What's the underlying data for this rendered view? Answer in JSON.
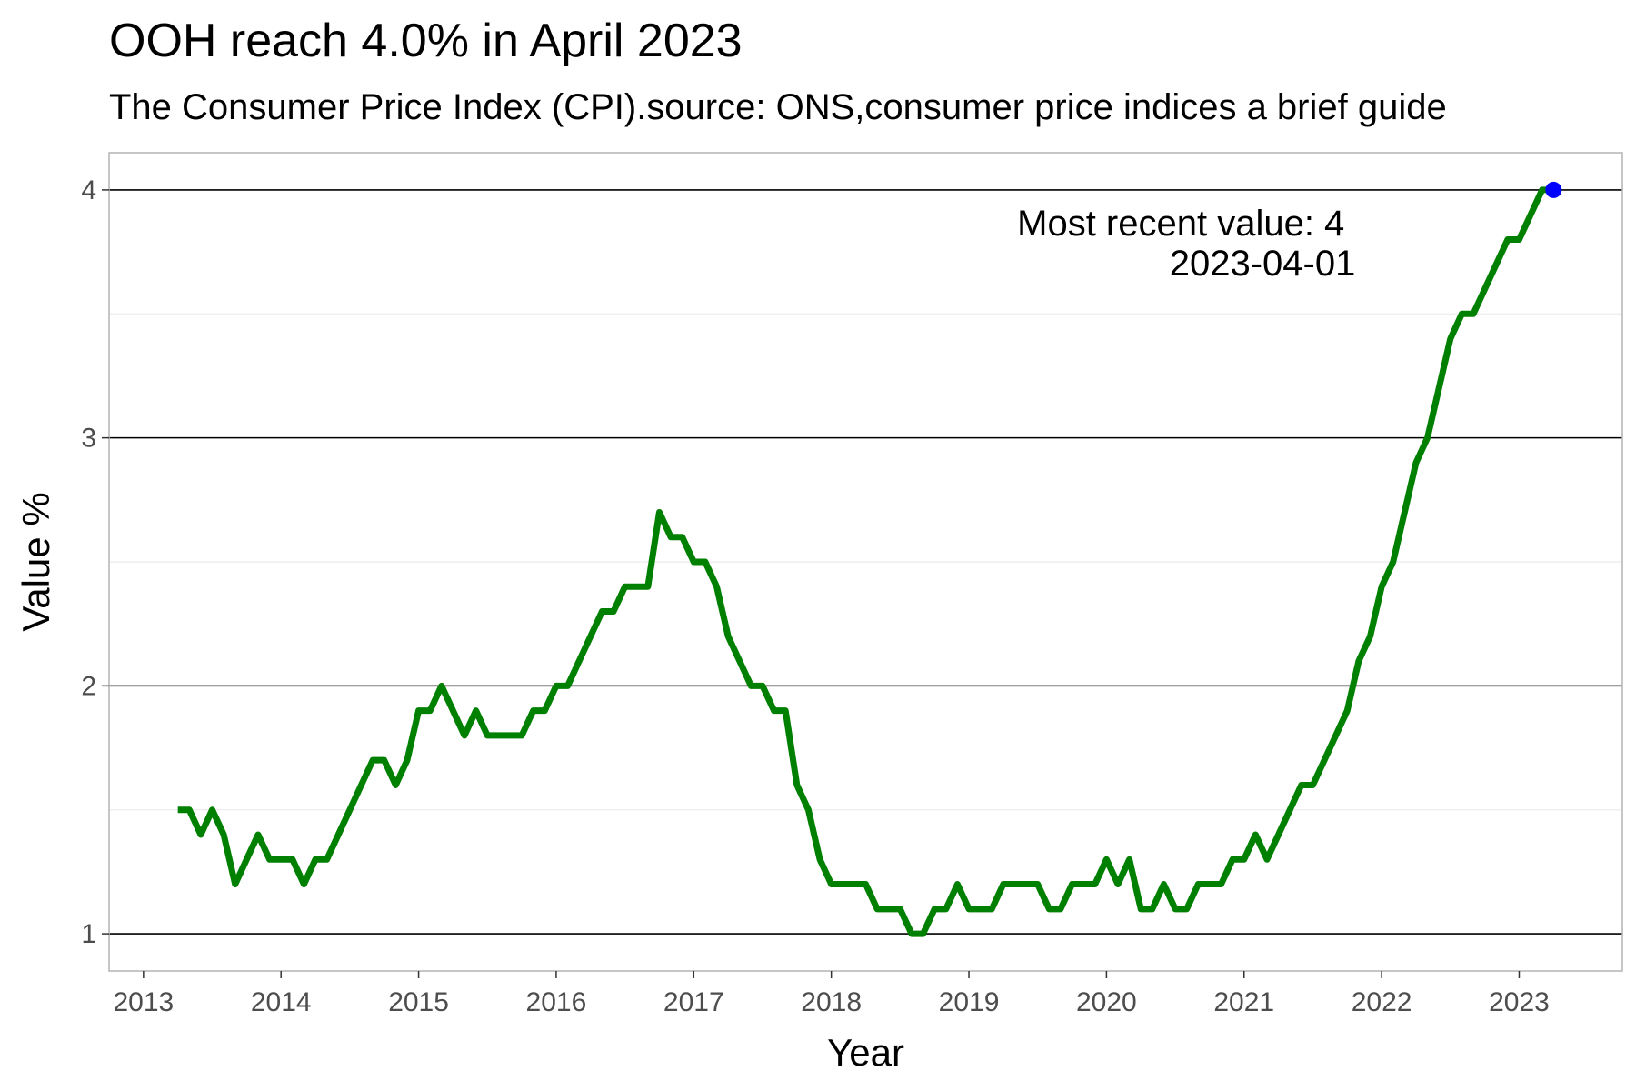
{
  "chart_data": {
    "type": "line",
    "title": "OOH reach 4.0% in April 2023",
    "subtitle": "The Consumer Price Index (CPI).source: ONS,consumer price indices a brief guide",
    "xlabel": "Year",
    "ylabel": "Value %",
    "x_ticks": [
      "2013",
      "2014",
      "2015",
      "2016",
      "2017",
      "2018",
      "2019",
      "2020",
      "2021",
      "2022",
      "2023"
    ],
    "y_ticks": [
      "1",
      "2",
      "3",
      "4"
    ],
    "xlim": [
      "2012-10-01",
      "2023-10-01"
    ],
    "ylim": [
      0.85,
      4.15
    ],
    "grid": true,
    "line_color": "#008000",
    "point_color": "#0000ff",
    "annotation": {
      "line1": "Most recent value: 4",
      "line2": "2023-04-01"
    },
    "series": [
      {
        "x": [
          "2013-04",
          "2013-05",
          "2013-06",
          "2013-07",
          "2013-08",
          "2013-09",
          "2013-10",
          "2013-11",
          "2013-12",
          "2014-01",
          "2014-02",
          "2014-03",
          "2014-04",
          "2014-05",
          "2014-06",
          "2014-07",
          "2014-08",
          "2014-09",
          "2014-10",
          "2014-11",
          "2014-12",
          "2015-01",
          "2015-02",
          "2015-03",
          "2015-04",
          "2015-05",
          "2015-06",
          "2015-07",
          "2015-08",
          "2015-09",
          "2015-10",
          "2015-11",
          "2015-12",
          "2016-01",
          "2016-02",
          "2016-03",
          "2016-04",
          "2016-05",
          "2016-06",
          "2016-07",
          "2016-08",
          "2016-09",
          "2016-10",
          "2016-11",
          "2016-12",
          "2017-01",
          "2017-02",
          "2017-03",
          "2017-04",
          "2017-05",
          "2017-06",
          "2017-07",
          "2017-08",
          "2017-09",
          "2017-10",
          "2017-11",
          "2017-12",
          "2018-01",
          "2018-02",
          "2018-03",
          "2018-04",
          "2018-05",
          "2018-06",
          "2018-07",
          "2018-08",
          "2018-09",
          "2018-10",
          "2018-11",
          "2018-12",
          "2019-01",
          "2019-02",
          "2019-03",
          "2019-04",
          "2019-05",
          "2019-06",
          "2019-07",
          "2019-08",
          "2019-09",
          "2019-10",
          "2019-11",
          "2019-12",
          "2020-01",
          "2020-02",
          "2020-03",
          "2020-04",
          "2020-05",
          "2020-06",
          "2020-07",
          "2020-08",
          "2020-09",
          "2020-10",
          "2020-11",
          "2020-12",
          "2021-01",
          "2021-02",
          "2021-03",
          "2021-04",
          "2021-05",
          "2021-06",
          "2021-07",
          "2021-08",
          "2021-09",
          "2021-10",
          "2021-11",
          "2021-12",
          "2022-01",
          "2022-02",
          "2022-03",
          "2022-04",
          "2022-05",
          "2022-06",
          "2022-07",
          "2022-08",
          "2022-09",
          "2022-10",
          "2022-11",
          "2022-12",
          "2023-01",
          "2023-02",
          "2023-03",
          "2023-04"
        ],
        "values": [
          1.5,
          1.5,
          1.4,
          1.5,
          1.4,
          1.2,
          1.3,
          1.4,
          1.3,
          1.3,
          1.3,
          1.2,
          1.3,
          1.3,
          1.4,
          1.5,
          1.6,
          1.7,
          1.7,
          1.6,
          1.7,
          1.9,
          1.9,
          2.0,
          1.9,
          1.8,
          1.9,
          1.8,
          1.8,
          1.8,
          1.8,
          1.9,
          1.9,
          2.0,
          2.0,
          2.1,
          2.2,
          2.3,
          2.3,
          2.4,
          2.4,
          2.4,
          2.7,
          2.6,
          2.6,
          2.5,
          2.5,
          2.4,
          2.2,
          2.1,
          2.0,
          2.0,
          1.9,
          1.9,
          1.6,
          1.5,
          1.3,
          1.2,
          1.2,
          1.2,
          1.2,
          1.1,
          1.1,
          1.1,
          1.0,
          1.0,
          1.1,
          1.1,
          1.2,
          1.1,
          1.1,
          1.1,
          1.2,
          1.2,
          1.2,
          1.2,
          1.1,
          1.1,
          1.2,
          1.2,
          1.2,
          1.3,
          1.2,
          1.3,
          1.1,
          1.1,
          1.2,
          1.1,
          1.1,
          1.2,
          1.2,
          1.2,
          1.3,
          1.3,
          1.4,
          1.3,
          1.4,
          1.5,
          1.6,
          1.6,
          1.7,
          1.8,
          1.9,
          2.1,
          2.2,
          2.4,
          2.5,
          2.7,
          2.9,
          3.0,
          3.2,
          3.4,
          3.5,
          3.5,
          3.6,
          3.7,
          3.8,
          3.8,
          3.9,
          4.0,
          4.0
        ]
      }
    ],
    "highlight_point": {
      "x": "2023-04",
      "value": 4.0
    }
  }
}
